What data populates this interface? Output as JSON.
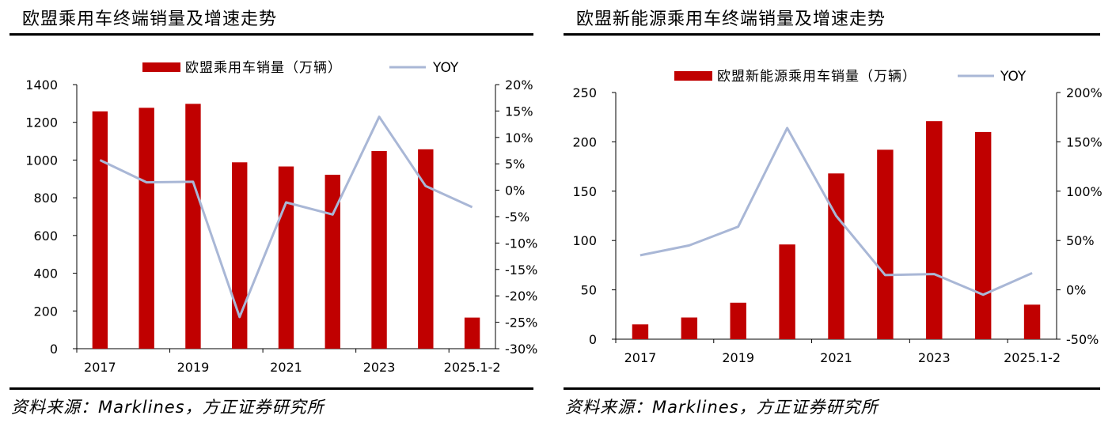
{
  "source_text": "资料来源：Marklines，方正证券研究所",
  "chart_data": [
    {
      "type": "bar+line",
      "title": "欧盟乘用车终端销量及增速走势",
      "categories": [
        "2017",
        "2018",
        "2019",
        "2020",
        "2021",
        "2022",
        "2023",
        "2024",
        "2025.1-2"
      ],
      "x_tick_labels": [
        "2017",
        "2019",
        "2021",
        "2023",
        "2025.1-2"
      ],
      "series": [
        {
          "name": "欧盟乘用车销量（万辆）",
          "kind": "bar",
          "axis": "left",
          "color": "#C00000",
          "values": [
            1258,
            1277,
            1298,
            988,
            966,
            922,
            1048,
            1057,
            165
          ]
        },
        {
          "name": "YOY",
          "kind": "line",
          "axis": "right",
          "color": "#A9B7D6",
          "values": [
            5.7,
            1.5,
            1.6,
            -24.0,
            -2.3,
            -4.6,
            13.9,
            0.8,
            -3.2
          ]
        }
      ],
      "y_left": {
        "min": 0,
        "max": 1400,
        "ticks": [
          "0",
          "200",
          "400",
          "600",
          "800",
          "1000",
          "1200",
          "1400"
        ]
      },
      "y_right": {
        "min": -30,
        "max": 20,
        "ticks": [
          "-30%",
          "-25%",
          "-20%",
          "-15%",
          "-10%",
          "-5%",
          "0%",
          "5%",
          "10%",
          "15%",
          "20%"
        ]
      },
      "legend": "top"
    },
    {
      "type": "bar+line",
      "title": "欧盟新能源乘用车终端销量及增速走势",
      "categories": [
        "2017",
        "2018",
        "2019",
        "2020",
        "2021",
        "2022",
        "2023",
        "2024",
        "2025.1-2"
      ],
      "x_tick_labels": [
        "2017",
        "2019",
        "2021",
        "2023",
        "2025.1-2"
      ],
      "series": [
        {
          "name": "欧盟新能源乘用车销量（万辆）",
          "kind": "bar",
          "axis": "left",
          "color": "#C00000",
          "values": [
            15,
            22,
            37,
            96,
            168,
            192,
            221,
            210,
            35
          ]
        },
        {
          "name": "YOY",
          "kind": "line",
          "axis": "right",
          "color": "#A9B7D6",
          "values": [
            35,
            45,
            64,
            164,
            75,
            15,
            16,
            -5,
            17
          ]
        }
      ],
      "y_left": {
        "min": 0,
        "max": 250,
        "ticks": [
          "0",
          "50",
          "100",
          "150",
          "200",
          "250"
        ]
      },
      "y_right": {
        "min": -50,
        "max": 200,
        "ticks": [
          "-50%",
          "0%",
          "50%",
          "100%",
          "150%",
          "200%"
        ]
      },
      "legend": "top"
    }
  ]
}
